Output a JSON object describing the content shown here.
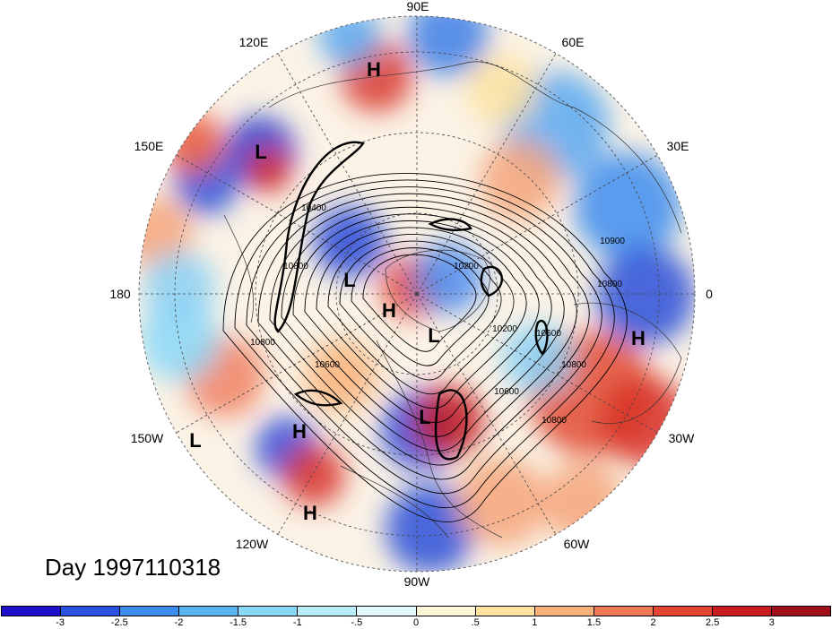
{
  "map": {
    "longitude_labels": [
      "90E",
      "60E",
      "30E",
      "0",
      "30W",
      "60W",
      "90W",
      "120W",
      "150W",
      "180",
      "150E",
      "120E"
    ],
    "pressure_centers": [
      {
        "label": "H",
        "id": "h-siberia-north"
      },
      {
        "label": "L",
        "id": "l-east-asia"
      },
      {
        "label": "L",
        "id": "l-chukotka"
      },
      {
        "label": "H",
        "id": "h-pole"
      },
      {
        "label": "L",
        "id": "l-greenland"
      },
      {
        "label": "H",
        "id": "h-africa"
      },
      {
        "label": "L",
        "id": "l-hudson"
      },
      {
        "label": "H",
        "id": "h-pacific"
      },
      {
        "label": "L",
        "id": "l-pacific-east"
      },
      {
        "label": "H",
        "id": "h-mexico-pacific"
      }
    ],
    "contour_labels": [
      "10400",
      "10800",
      "10600",
      "10200",
      "10600",
      "10800",
      "10900",
      "10800",
      "10800",
      "10600",
      "10800",
      "10200"
    ]
  },
  "caption": "Day 1997110318",
  "colorbar": {
    "colors": [
      "#1c10c8",
      "#2a52e0",
      "#3c8cee",
      "#5ab4f4",
      "#8ad8f8",
      "#b8eefa",
      "#e4f8fc",
      "#fdf6d8",
      "#fde2a0",
      "#f8b27a",
      "#f07a56",
      "#e24632",
      "#c81c1e",
      "#a0101a"
    ],
    "tick_labels": [
      "-3",
      "-2.5",
      "-2",
      "-1.5",
      "-1",
      "-.5",
      "0",
      ".5",
      "1",
      "1.5",
      "2",
      "2.5",
      "3"
    ]
  }
}
